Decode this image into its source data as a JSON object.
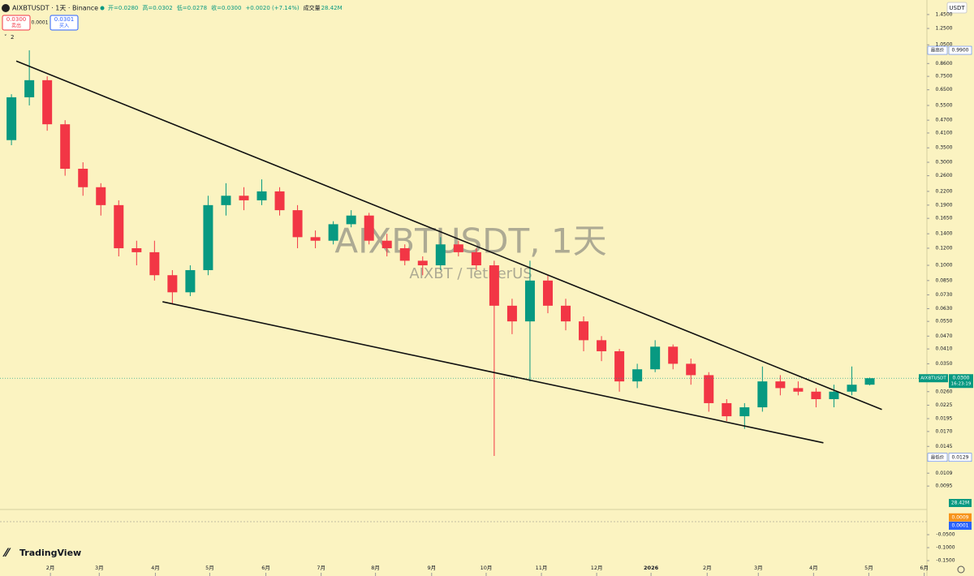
{
  "header": {
    "title": "AIXBTUSDT · 1天 · Binance",
    "ohlc": [
      "开=0.0280",
      "高=0.0302",
      "低=0.0278",
      "收=0.0300",
      "+0.0020 (+7.14%)"
    ],
    "volume_label": "成交量",
    "volume_value": "28.42M",
    "sell_price": "0.0300",
    "sell_label": "卖出",
    "spread": "0.0001",
    "buy_price": "0.0301",
    "buy_label": "买入",
    "indicators": "2",
    "currency": "USDT",
    "logo": "TradingView"
  },
  "watermark": {
    "title": "AIXBTUSDT, 1天",
    "subtitle": "AIXBT / TetherUS"
  },
  "chart_data": {
    "type": "candlestick",
    "log_scale": true,
    "up_color": "#089981",
    "down_color": "#f23645",
    "xlim": [
      -0.64,
      51.2
    ],
    "ylim": [
      0.0085,
      1.5
    ],
    "xticks": [
      {
        "value": 2.18,
        "label": "2月"
      },
      {
        "value": 4.91,
        "label": "3月"
      },
      {
        "value": 8.05,
        "label": "4月"
      },
      {
        "value": 11.09,
        "label": "5月"
      },
      {
        "value": 14.23,
        "label": "6月"
      },
      {
        "value": 17.32,
        "label": "7月"
      },
      {
        "value": 20.36,
        "label": "8月"
      },
      {
        "value": 23.5,
        "label": "9月"
      },
      {
        "value": 26.55,
        "label": "10月"
      },
      {
        "value": 29.64,
        "label": "11月"
      },
      {
        "value": 32.73,
        "label": "12月"
      },
      {
        "value": 35.77,
        "label": "2026"
      },
      {
        "value": 38.91,
        "label": "2月"
      },
      {
        "value": 41.77,
        "label": "3月"
      },
      {
        "value": 44.86,
        "label": "4月"
      },
      {
        "value": 47.95,
        "label": "5月"
      },
      {
        "value": 51.05,
        "label": "6月"
      }
    ],
    "yticks": [
      {
        "value": 1.45,
        "label": "1.4500"
      },
      {
        "value": 1.25,
        "label": "1.2500"
      },
      {
        "value": 1.05,
        "label": "1.0500"
      },
      {
        "value": 0.86,
        "label": "0.8600"
      },
      {
        "value": 0.75,
        "label": "0.7500"
      },
      {
        "value": 0.65,
        "label": "0.6500"
      },
      {
        "value": 0.55,
        "label": "0.5500"
      },
      {
        "value": 0.47,
        "label": "0.4700"
      },
      {
        "value": 0.41,
        "label": "0.4100"
      },
      {
        "value": 0.35,
        "label": "0.3500"
      },
      {
        "value": 0.3,
        "label": "0.3000"
      },
      {
        "value": 0.26,
        "label": "0.2600"
      },
      {
        "value": 0.22,
        "label": "0.2200"
      },
      {
        "value": 0.19,
        "label": "0.1900"
      },
      {
        "value": 0.165,
        "label": "0.1650"
      },
      {
        "value": 0.14,
        "label": "0.1400"
      },
      {
        "value": 0.12,
        "label": "0.1200"
      },
      {
        "value": 0.1,
        "label": "0.1000"
      },
      {
        "value": 0.085,
        "label": "0.0850"
      },
      {
        "value": 0.073,
        "label": "0.0730"
      },
      {
        "value": 0.063,
        "label": "0.0630"
      },
      {
        "value": 0.055,
        "label": "0.0550"
      },
      {
        "value": 0.047,
        "label": "0.0470"
      },
      {
        "value": 0.041,
        "label": "0.0410"
      },
      {
        "value": 0.035,
        "label": "0.0350"
      },
      {
        "value": 0.026,
        "label": "0.0260"
      },
      {
        "value": 0.0225,
        "label": "0.0225"
      },
      {
        "value": 0.0195,
        "label": "0.0195"
      },
      {
        "value": 0.017,
        "label": "0.0170"
      },
      {
        "value": 0.0145,
        "label": "0.0145"
      },
      {
        "value": 0.0109,
        "label": "0.0109"
      },
      {
        "value": 0.0095,
        "label": "0.0095"
      }
    ],
    "series": [
      {
        "name": "AIXBTUSDT",
        "open": [
          0.38,
          0.6,
          0.72,
          0.45,
          0.28,
          0.23,
          0.19,
          0.12,
          0.115,
          0.09,
          0.075,
          0.095,
          0.19,
          0.21,
          0.2,
          0.22,
          0.18,
          0.135,
          0.13,
          0.155,
          0.17,
          0.13,
          0.12,
          0.105,
          0.1,
          0.125,
          0.115,
          0.1,
          0.065,
          0.055,
          0.085,
          0.065,
          0.055,
          0.045,
          0.04,
          0.029,
          0.033,
          0.042,
          0.035,
          0.031,
          0.023,
          0.02,
          0.022,
          0.029,
          0.027,
          0.026,
          0.024,
          0.026,
          0.028
        ],
        "high": [
          0.62,
          0.99,
          0.75,
          0.47,
          0.3,
          0.24,
          0.2,
          0.13,
          0.13,
          0.095,
          0.1,
          0.21,
          0.24,
          0.23,
          0.25,
          0.23,
          0.19,
          0.145,
          0.16,
          0.18,
          0.175,
          0.14,
          0.125,
          0.11,
          0.135,
          0.13,
          0.12,
          0.105,
          0.07,
          0.105,
          0.09,
          0.07,
          0.058,
          0.047,
          0.041,
          0.035,
          0.045,
          0.043,
          0.037,
          0.032,
          0.024,
          0.023,
          0.034,
          0.031,
          0.029,
          0.027,
          0.028,
          0.034,
          0.0302
        ],
        "low": [
          0.36,
          0.55,
          0.42,
          0.26,
          0.21,
          0.17,
          0.11,
          0.1,
          0.085,
          0.066,
          0.072,
          0.09,
          0.17,
          0.18,
          0.19,
          0.17,
          0.12,
          0.12,
          0.125,
          0.15,
          0.125,
          0.11,
          0.1,
          0.09,
          0.095,
          0.11,
          0.095,
          0.0131,
          0.048,
          0.029,
          0.06,
          0.05,
          0.04,
          0.036,
          0.026,
          0.027,
          0.032,
          0.033,
          0.028,
          0.021,
          0.019,
          0.0175,
          0.021,
          0.025,
          0.025,
          0.022,
          0.022,
          0.025,
          0.0278
        ],
        "close": [
          0.6,
          0.72,
          0.45,
          0.28,
          0.23,
          0.19,
          0.12,
          0.115,
          0.09,
          0.075,
          0.095,
          0.19,
          0.21,
          0.2,
          0.22,
          0.18,
          0.135,
          0.13,
          0.155,
          0.17,
          0.13,
          0.12,
          0.105,
          0.1,
          0.125,
          0.115,
          0.1,
          0.065,
          0.055,
          0.085,
          0.065,
          0.055,
          0.045,
          0.04,
          0.029,
          0.033,
          0.042,
          0.035,
          0.031,
          0.023,
          0.02,
          0.022,
          0.029,
          0.027,
          0.026,
          0.024,
          0.026,
          0.028,
          0.03
        ],
        "last_label": "0.0300",
        "countdown": "16:23:19"
      }
    ],
    "high_marker": {
      "text": "最高价",
      "value": 0.99,
      "label": "0.9900"
    },
    "low_marker": {
      "text": "最低价",
      "value": 0.0129,
      "label": "0.0129"
    },
    "trendlines": [
      {
        "points": [
          [
            0.27,
            0.883
          ],
          [
            48.68,
            0.0215
          ]
        ]
      },
      {
        "points": [
          [
            8.45,
            0.0678
          ],
          [
            45.41,
            0.01507
          ]
        ]
      }
    ],
    "macd": {
      "ylim": [
        -0.178,
        0.047
      ],
      "yticks": [
        {
          "value": -0.05,
          "label": "-0.0500"
        },
        {
          "value": -0.1,
          "label": "-0.1000"
        },
        {
          "value": -0.15,
          "label": "-0.1500"
        }
      ],
      "badges": [
        {
          "value": 0.0009,
          "label": "0.0009",
          "color": "#f7931a"
        },
        {
          "value": 0.0001,
          "label": "0.0001",
          "color": "#2962ff"
        }
      ]
    }
  }
}
